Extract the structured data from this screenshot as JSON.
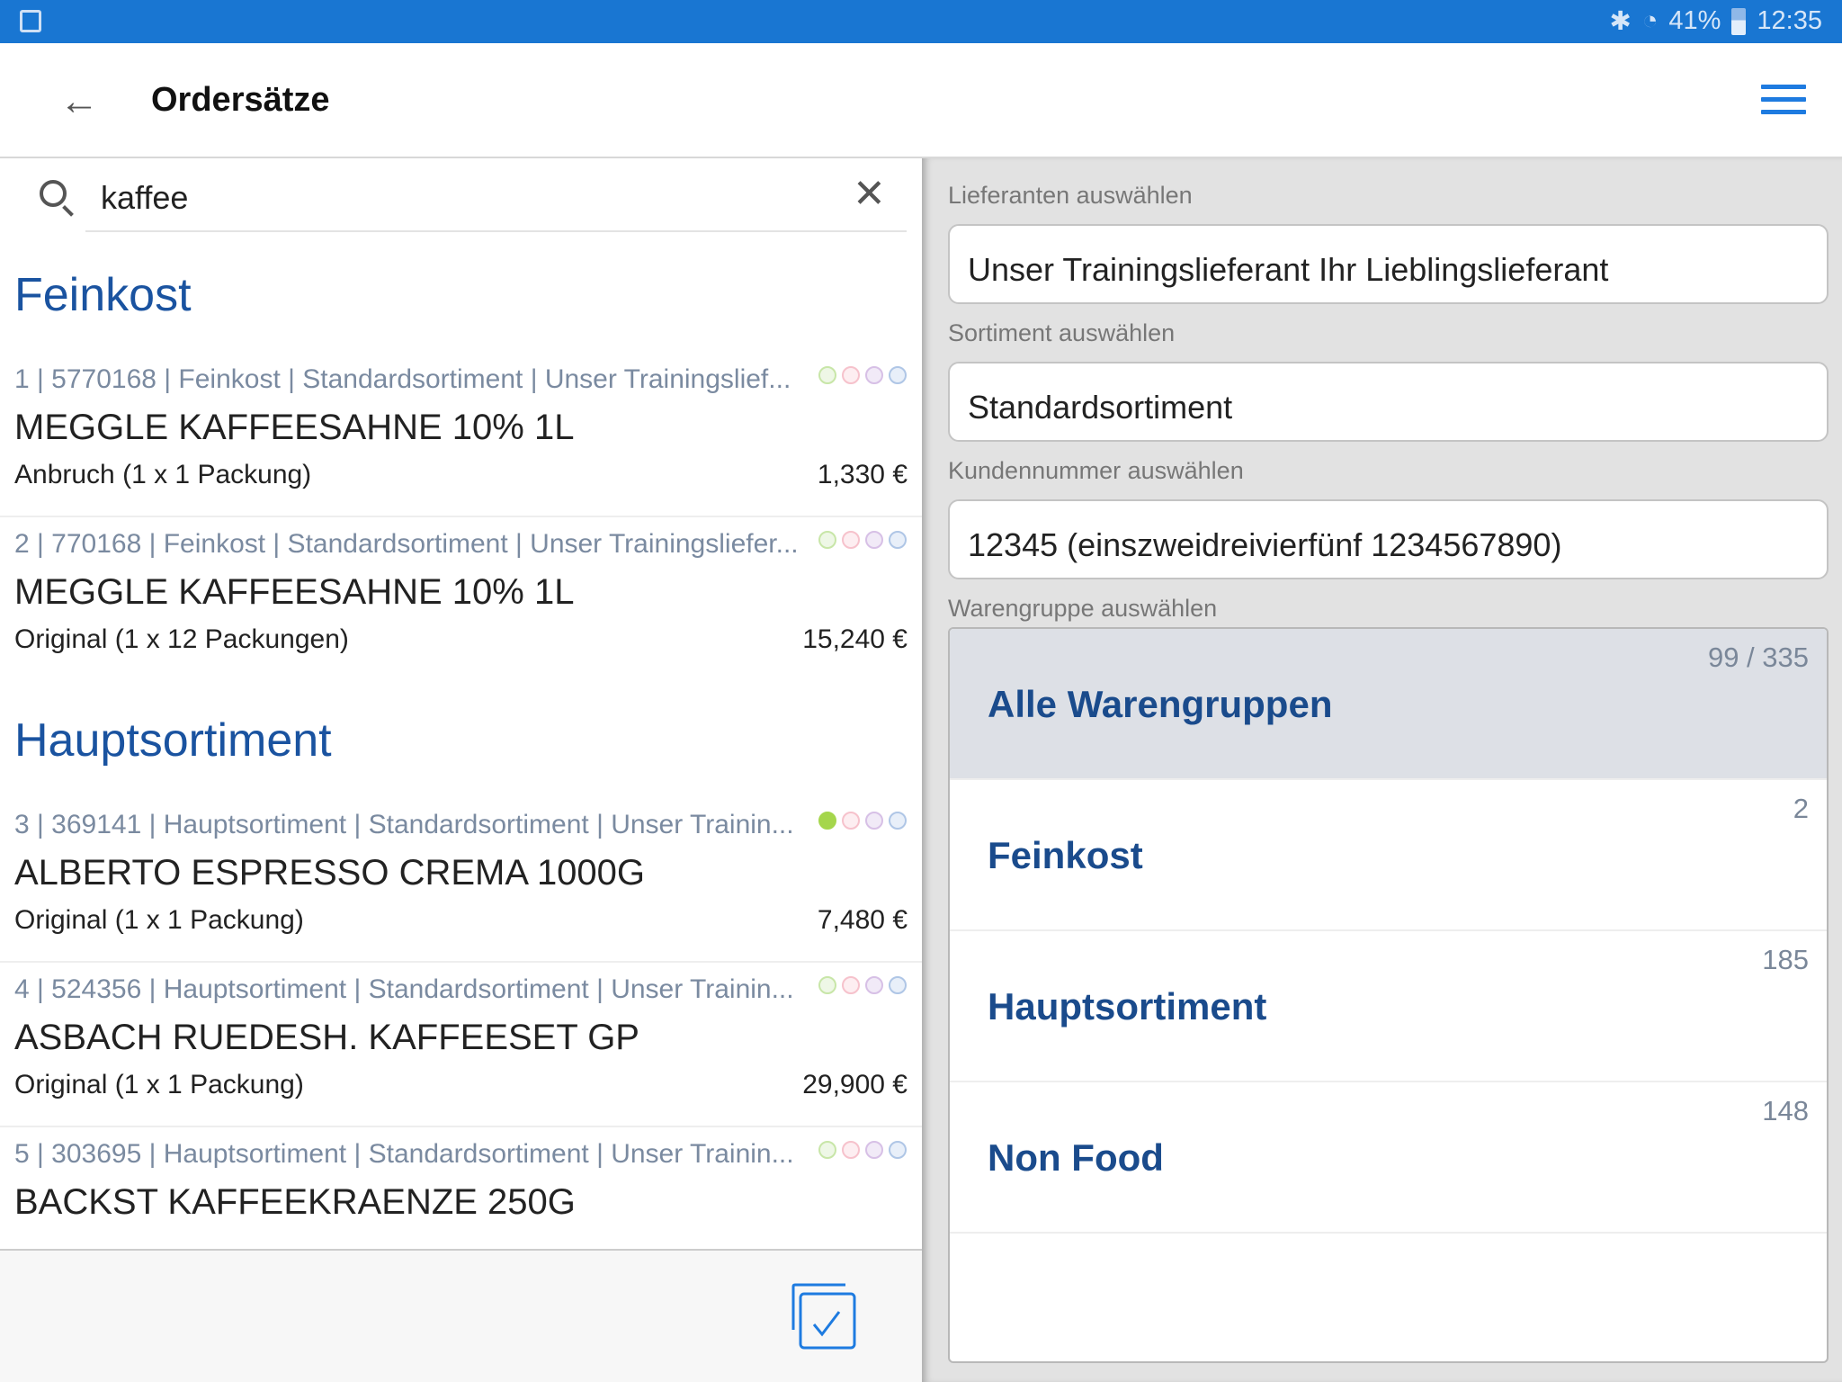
{
  "status_bar": {
    "battery": "41%",
    "time": "12:35"
  },
  "header": {
    "title": "Ordersätze"
  },
  "search": {
    "value": "kaffee"
  },
  "groups": [
    "Feinkost",
    "Hauptsortiment"
  ],
  "items": [
    {
      "meta": "1 | 5770168 | Feinkost | Standardsortiment | Unser Trainingslief...",
      "name": "MEGGLE KAFFEESAHNE 10% 1L",
      "sub": "Anbruch (1 x 1 Packung)",
      "price": "1,330 €",
      "dots": [
        false,
        false,
        false,
        false
      ]
    },
    {
      "meta": "2 | 770168 | Feinkost | Standardsortiment | Unser Trainingsliefer...",
      "name": "MEGGLE KAFFEESAHNE 10% 1L",
      "sub": "Original (1 x 12 Packungen)",
      "price": "15,240 €",
      "dots": [
        false,
        false,
        false,
        false
      ]
    },
    {
      "meta": "3 | 369141 | Hauptsortiment | Standardsortiment | Unser Trainin...",
      "name": "ALBERTO ESPRESSO CREMA 1000G",
      "sub": "Original (1 x 1 Packung)",
      "price": "7,480 €",
      "dots": [
        true,
        false,
        false,
        false
      ]
    },
    {
      "meta": "4 | 524356 | Hauptsortiment | Standardsortiment | Unser Trainin...",
      "name": "ASBACH RUEDESH. KAFFEESET GP",
      "sub": "Original (1 x 1 Packung)",
      "price": "29,900 €",
      "dots": [
        false,
        false,
        false,
        false
      ]
    },
    {
      "meta": "5 | 303695 | Hauptsortiment | Standardsortiment | Unser Trainin...",
      "name": "BACKST KAFFEEKRAENZE 250G",
      "sub": "",
      "price": "",
      "dots": [
        false,
        false,
        false,
        false
      ]
    }
  ],
  "dot_colors": [
    {
      "border": "#c8e6a8",
      "fill": "#eef7e6",
      "active": "#a5d64c"
    },
    {
      "border": "#f6c2cc",
      "fill": "#fdeef1",
      "active": "#f06a84"
    },
    {
      "border": "#d7c0e6",
      "fill": "#f1eaf7",
      "active": "#a070c8"
    },
    {
      "border": "#afc6e6",
      "fill": "#e8eff9",
      "active": "#5a8ad0"
    }
  ],
  "filters": {
    "supplier_label": "Lieferanten auswählen",
    "supplier_value": "Unser Trainingslieferant Ihr Lieblingslieferant",
    "range_label": "Sortiment auswählen",
    "range_value": "Standardsortiment",
    "customer_label": "Kundennummer auswählen",
    "customer_value": "12345 (einszweidreivierfünf 1234567890)",
    "group_label": "Warengruppe auswählen",
    "groups": [
      {
        "name": "Alle Warengruppen",
        "count": "99 / 335",
        "selected": true
      },
      {
        "name": "Feinkost",
        "count": "2"
      },
      {
        "name": "Hauptsortiment",
        "count": "185"
      },
      {
        "name": "Non Food",
        "count": "148"
      }
    ]
  },
  "colors": {
    "status_bar": "#1976d2",
    "accent": "#1e7be0",
    "group_heading": "#1a53a0"
  }
}
